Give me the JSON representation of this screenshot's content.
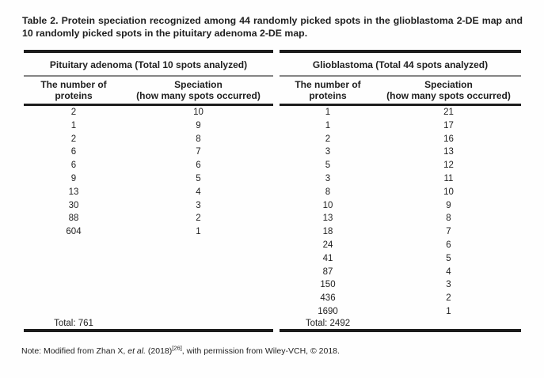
{
  "caption": "Table 2. Protein speciation recognized among 44 randomly picked spots in the glioblastoma 2-DE map and 10 randomly picked spots in the pituitary adenoma 2-DE map.",
  "table": {
    "groups": [
      {
        "header": "Pituitary adenoma (Total 10 spots analyzed)",
        "col1_header": [
          "The number of",
          "proteins"
        ],
        "col2_header": [
          "Speciation",
          "(how many spots occurred)"
        ],
        "rows": [
          [
            "2",
            "10"
          ],
          [
            "1",
            "9"
          ],
          [
            "2",
            "8"
          ],
          [
            "6",
            "7"
          ],
          [
            "6",
            "6"
          ],
          [
            "9",
            "5"
          ],
          [
            "13",
            "4"
          ],
          [
            "30",
            "3"
          ],
          [
            "88",
            "2"
          ],
          [
            "604",
            "1"
          ]
        ],
        "total": "Total: 761"
      },
      {
        "header": "Glioblastoma (Total 44 spots analyzed)",
        "col1_header": [
          "The number of",
          "proteins"
        ],
        "col2_header": [
          "Speciation",
          "(how many spots occurred)"
        ],
        "rows": [
          [
            "1",
            "21"
          ],
          [
            "1",
            "17"
          ],
          [
            "2",
            "16"
          ],
          [
            "3",
            "13"
          ],
          [
            "5",
            "12"
          ],
          [
            "3",
            "11"
          ],
          [
            "8",
            "10"
          ],
          [
            "10",
            "9"
          ],
          [
            "13",
            "8"
          ],
          [
            "18",
            "7"
          ],
          [
            "24",
            "6"
          ],
          [
            "41",
            "5"
          ],
          [
            "87",
            "4"
          ],
          [
            "150",
            "3"
          ],
          [
            "436",
            "2"
          ],
          [
            "1690",
            "1"
          ]
        ],
        "total": "Total: 2492"
      }
    ]
  },
  "note": {
    "prefix": "Note: Modified from Zhan X, ",
    "et_al": "et al.",
    "year": " (2018)",
    "reference": "[26]",
    "suffix": ", with permission from Wiley-VCH, © 2018."
  }
}
